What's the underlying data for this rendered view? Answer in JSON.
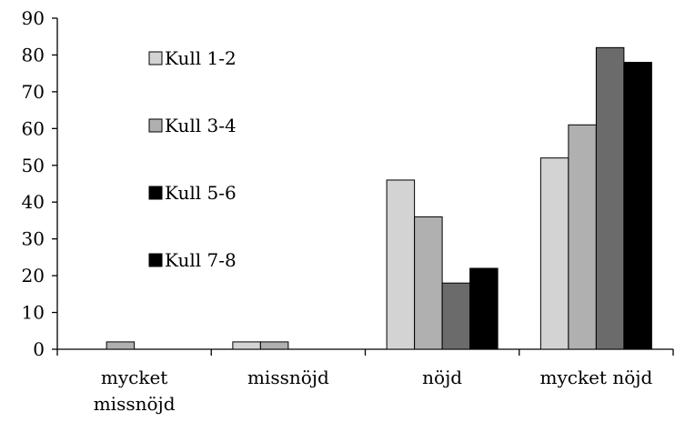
{
  "chart_data": {
    "type": "bar",
    "title": "",
    "xlabel": "",
    "ylabel": "",
    "ylim": [
      0,
      90
    ],
    "yticks": [
      0,
      10,
      20,
      30,
      40,
      50,
      60,
      70,
      80,
      90
    ],
    "grid": false,
    "legend_position": "inside-left",
    "categories": [
      [
        "mycket",
        "missnöjd"
      ],
      [
        "missnöjd"
      ],
      [
        "nöjd"
      ],
      [
        "mycket nöjd"
      ]
    ],
    "series": [
      {
        "name": "Kull 1-2",
        "color": "#d3d3d3",
        "values": [
          0,
          2,
          46,
          52
        ]
      },
      {
        "name": "Kull 3-4",
        "color": "#b0b0b0",
        "values": [
          2,
          2,
          36,
          61
        ]
      },
      {
        "name": "Kull 5-6",
        "color": "#6b6b6b",
        "values": [
          0,
          0,
          18,
          82
        ]
      },
      {
        "name": "Kull 7-8",
        "color": "#000000",
        "values": [
          0,
          0,
          22,
          78
        ]
      }
    ],
    "legend_swatch_colors": [
      "#d3d3d3",
      "#b0b0b0",
      "#000000",
      "#000000"
    ]
  }
}
